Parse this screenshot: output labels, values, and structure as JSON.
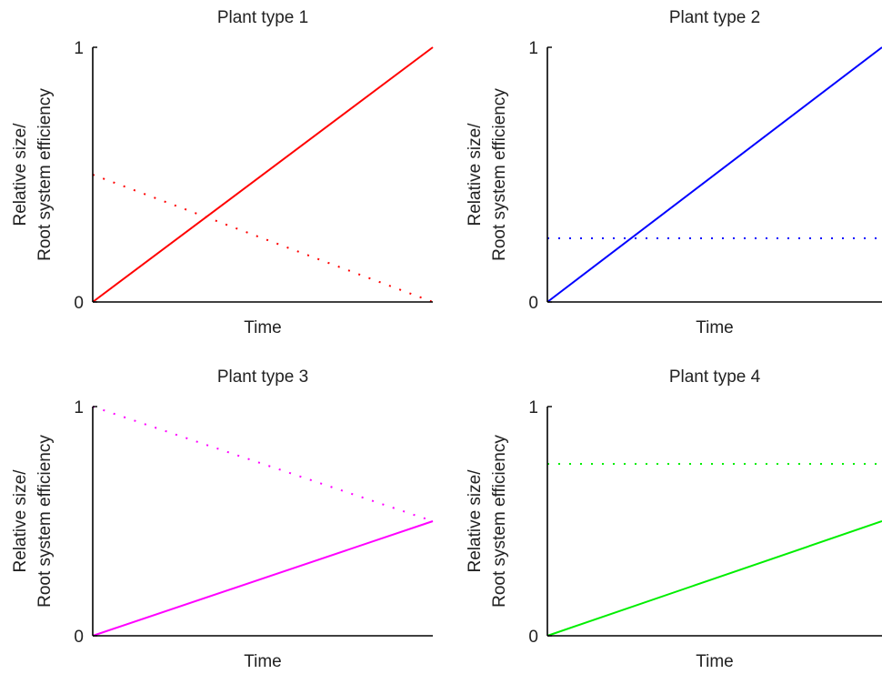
{
  "chart_data": [
    {
      "type": "line",
      "title": "Plant type 1",
      "xlabel": "Time",
      "ylabel": [
        "Relative size/",
        "Root system efficiency"
      ],
      "xlim": [
        0,
        1
      ],
      "ylim": [
        0,
        1
      ],
      "yticks": [
        "0",
        "1"
      ],
      "grid": false,
      "series": [
        {
          "style": "solid",
          "color": "#ff0000",
          "x": [
            0,
            1
          ],
          "y": [
            0,
            1
          ]
        },
        {
          "style": "dotted",
          "color": "#ff0000",
          "x": [
            0,
            1
          ],
          "y": [
            0.5,
            0
          ]
        }
      ]
    },
    {
      "type": "line",
      "title": "Plant type 2",
      "xlabel": "Time",
      "ylabel": [
        "Relative size/",
        "Root system efficiency"
      ],
      "xlim": [
        0,
        1
      ],
      "ylim": [
        0,
        1
      ],
      "yticks": [
        "0",
        "1"
      ],
      "grid": false,
      "series": [
        {
          "style": "solid",
          "color": "#0000ff",
          "x": [
            0,
            1
          ],
          "y": [
            0,
            1
          ]
        },
        {
          "style": "dotted",
          "color": "#0000ff",
          "x": [
            0,
            1
          ],
          "y": [
            0.25,
            0.25
          ]
        }
      ]
    },
    {
      "type": "line",
      "title": "Plant type 3",
      "xlabel": "Time",
      "ylabel": [
        "Relative size/",
        "Root system efficiency"
      ],
      "xlim": [
        0,
        1
      ],
      "ylim": [
        0,
        1
      ],
      "yticks": [
        "0",
        "1"
      ],
      "grid": false,
      "series": [
        {
          "style": "solid",
          "color": "#ff00ff",
          "x": [
            0,
            1
          ],
          "y": [
            0,
            0.5
          ]
        },
        {
          "style": "dotted",
          "color": "#ff00ff",
          "x": [
            0,
            1
          ],
          "y": [
            1,
            0.5
          ]
        }
      ]
    },
    {
      "type": "line",
      "title": "Plant type 4",
      "xlabel": "Time",
      "ylabel": [
        "Relative size/",
        "Root system efficiency"
      ],
      "xlim": [
        0,
        1
      ],
      "ylim": [
        0,
        1
      ],
      "yticks": [
        "0",
        "1"
      ],
      "grid": false,
      "series": [
        {
          "style": "solid",
          "color": "#00ee00",
          "x": [
            0,
            1
          ],
          "y": [
            0,
            0.5
          ]
        },
        {
          "style": "dotted",
          "color": "#00ee00",
          "x": [
            0,
            1
          ],
          "y": [
            0.75,
            0.75
          ]
        }
      ]
    }
  ]
}
